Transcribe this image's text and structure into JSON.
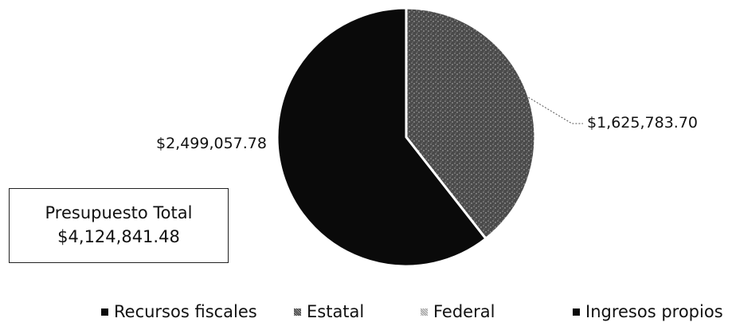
{
  "chart_data": {
    "type": "pie",
    "categories": [
      "Recursos fiscales",
      "Estatal",
      "Federal",
      "Ingresos propios"
    ],
    "values": [
      2499057.78,
      1625783.7,
      0,
      0
    ],
    "data_labels": [
      "$2,499,057.78",
      "$1,625,783.70",
      "",
      ""
    ],
    "legend_position": "bottom",
    "colors": [
      "#0a0a0a",
      "#5a5a5a",
      "#b8b8b8",
      "#0a0a0a"
    ]
  },
  "total_box": {
    "title": "Presupuesto Total",
    "amount": "$4,124,841.48"
  }
}
